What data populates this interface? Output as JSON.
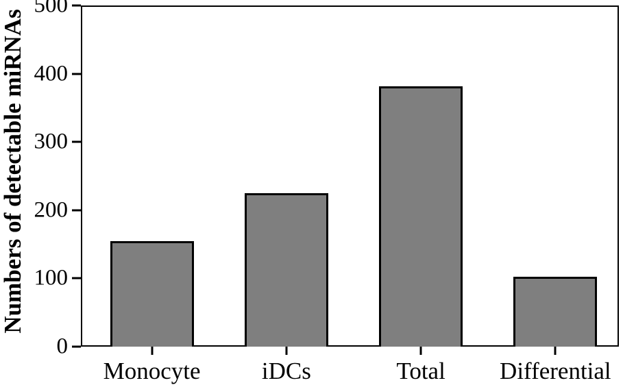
{
  "chart_data": {
    "type": "bar",
    "title": "",
    "categories": [
      "Monocyte",
      "iDCs",
      "Total",
      "Differential"
    ],
    "values": [
      155,
      225,
      382,
      102
    ],
    "xlabel": "",
    "ylabel": "Numbers of detectable miRNAs",
    "ylim": [
      0,
      500
    ],
    "yticks": [
      0,
      100,
      200,
      300,
      400,
      500
    ],
    "grid": false,
    "legend": "none",
    "bar_color": "#7f7f7f",
    "bar_border_color": "#000000",
    "axis_color": "#000000",
    "background_color": "#ffffff"
  }
}
